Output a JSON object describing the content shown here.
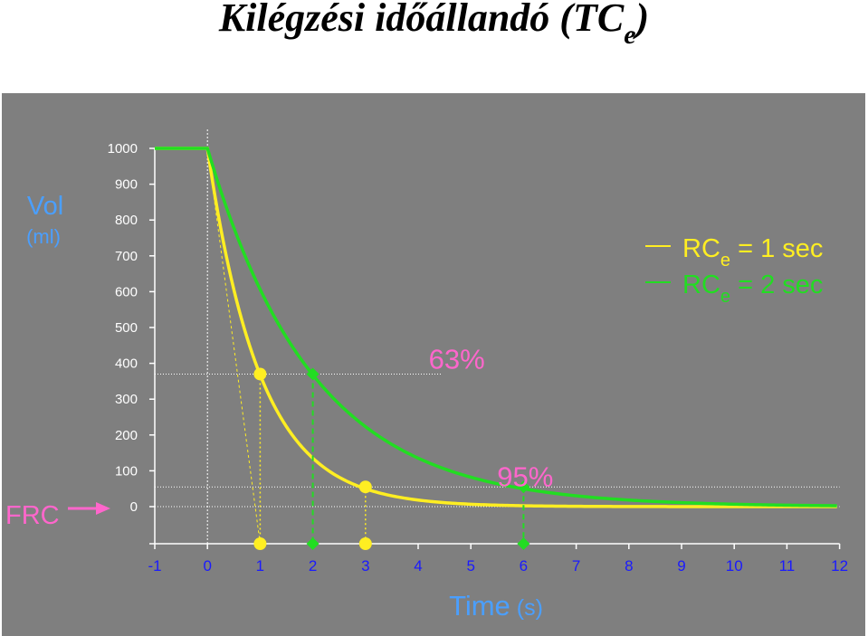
{
  "slide": {
    "title_main": "Kilégzési időállandó (TC",
    "title_sub": "e",
    "title_close": ")"
  },
  "colors": {
    "background_panel": "#7f7f7f",
    "yellow": "#ffee22",
    "green": "#22dd22",
    "pink": "#ff66cc",
    "blue": "#4a9fff"
  },
  "chart_data": {
    "type": "line",
    "x_axis": {
      "label_main": "Time",
      "label_unit": "(s)",
      "ticks": [
        -1,
        0,
        1,
        2,
        3,
        4,
        5,
        6,
        7,
        8,
        9,
        10,
        11,
        12
      ],
      "range": [
        -1,
        12
      ]
    },
    "y_axis": {
      "label_main": "Vol",
      "label_unit": "(ml)",
      "ticks": [
        0,
        100,
        200,
        300,
        400,
        500,
        600,
        700,
        800,
        900,
        1000
      ],
      "range": [
        -100,
        1000
      ]
    },
    "frc_label": "FRC",
    "legend": {
      "position": "top-right",
      "entries": [
        {
          "prefix": "RC",
          "sub": "e",
          "suffix": " = 1 sec",
          "color": "yellow"
        },
        {
          "prefix": "RC",
          "sub": "e",
          "suffix": " = 2 sec",
          "color": "green"
        }
      ]
    },
    "series": [
      {
        "name": "RCe = 1 sec",
        "color": "yellow",
        "tau": 1,
        "v0": 1000,
        "x_start": -1,
        "x_end": 12
      },
      {
        "name": "RCe = 2 sec",
        "color": "green",
        "tau": 2,
        "v0": 1000,
        "x_start": -1,
        "x_end": 12
      }
    ],
    "markers": [
      {
        "series": "yellow",
        "x": 1,
        "y": 370
      },
      {
        "series": "green",
        "x": 2,
        "y": 370
      },
      {
        "series": "yellow",
        "x": 3,
        "y": 55
      },
      {
        "series": "green",
        "x": 6,
        "y": 55
      }
    ],
    "axis_markers": [
      {
        "series": "yellow",
        "x": 1
      },
      {
        "series": "green",
        "x": 2
      },
      {
        "series": "yellow",
        "x": 3
      },
      {
        "series": "green",
        "x": 6
      }
    ],
    "reference_lines": [
      {
        "y": 370
      },
      {
        "y": 55
      }
    ],
    "annotations": [
      {
        "text": "63%",
        "x": 4.2,
        "y": 400,
        "color": "pink"
      },
      {
        "text": "95%",
        "x": 5.5,
        "y": 72,
        "color": "pink"
      }
    ]
  }
}
